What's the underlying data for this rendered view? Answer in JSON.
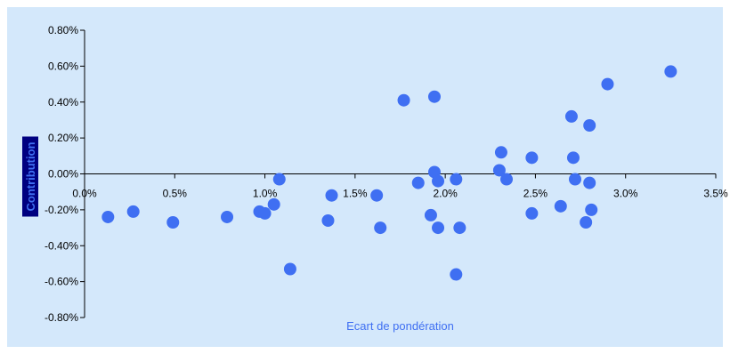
{
  "colors": {
    "plot_background": "#d4e8fb",
    "page_background": "#ffffff",
    "axis": "#000000",
    "marker": "#3f6ff2",
    "xlabel": "#3f6ff2",
    "ylabel_bg": "#000080",
    "ylabel_fg": "#3f6ff2"
  },
  "chart_data": {
    "type": "scatter",
    "title": "",
    "xlabel": "Ecart de pondération",
    "ylabel": "Contribution",
    "xlim": [
      0,
      0.035
    ],
    "ylim": [
      -0.008,
      0.008
    ],
    "grid": false,
    "x_ticks": [
      {
        "value": 0.0,
        "label": "0.0%"
      },
      {
        "value": 0.005,
        "label": "0.5%"
      },
      {
        "value": 0.01,
        "label": "1.0%"
      },
      {
        "value": 0.015,
        "label": "1.5%"
      },
      {
        "value": 0.02,
        "label": "2.0%"
      },
      {
        "value": 0.025,
        "label": "2.5%"
      },
      {
        "value": 0.03,
        "label": "3.0%"
      },
      {
        "value": 0.035,
        "label": "3.5%"
      }
    ],
    "y_ticks": [
      {
        "value": 0.008,
        "label": "0.80%"
      },
      {
        "value": 0.006,
        "label": "0.60%"
      },
      {
        "value": 0.004,
        "label": "0.40%"
      },
      {
        "value": 0.002,
        "label": "0.20%"
      },
      {
        "value": 0.0,
        "label": "0.00%"
      },
      {
        "value": -0.002,
        "label": "-0.20%"
      },
      {
        "value": -0.004,
        "label": "-0.40%"
      },
      {
        "value": -0.006,
        "label": "-0.60%"
      },
      {
        "value": -0.008,
        "label": "-0.80%"
      }
    ],
    "points": [
      {
        "x": 0.0013,
        "y": -0.0024
      },
      {
        "x": 0.0027,
        "y": -0.0021
      },
      {
        "x": 0.0049,
        "y": -0.0027
      },
      {
        "x": 0.0079,
        "y": -0.0024
      },
      {
        "x": 0.0097,
        "y": -0.0021
      },
      {
        "x": 0.01,
        "y": -0.0022
      },
      {
        "x": 0.0105,
        "y": -0.0017
      },
      {
        "x": 0.0108,
        "y": -0.0003
      },
      {
        "x": 0.0114,
        "y": -0.0053
      },
      {
        "x": 0.0135,
        "y": -0.0026
      },
      {
        "x": 0.0137,
        "y": -0.0012
      },
      {
        "x": 0.0162,
        "y": -0.0012
      },
      {
        "x": 0.0164,
        "y": -0.003
      },
      {
        "x": 0.0177,
        "y": 0.0041
      },
      {
        "x": 0.0185,
        "y": -0.0005
      },
      {
        "x": 0.0192,
        "y": -0.0023
      },
      {
        "x": 0.0194,
        "y": 0.0043
      },
      {
        "x": 0.0194,
        "y": 0.0001
      },
      {
        "x": 0.0196,
        "y": -0.0004
      },
      {
        "x": 0.0196,
        "y": -0.003
      },
      {
        "x": 0.0206,
        "y": -0.0003
      },
      {
        "x": 0.0206,
        "y": -0.0056
      },
      {
        "x": 0.0208,
        "y": -0.003
      },
      {
        "x": 0.023,
        "y": 0.0002
      },
      {
        "x": 0.0231,
        "y": 0.0012
      },
      {
        "x": 0.0234,
        "y": -0.0003
      },
      {
        "x": 0.0248,
        "y": 0.0009
      },
      {
        "x": 0.0248,
        "y": -0.0022
      },
      {
        "x": 0.0264,
        "y": -0.0018
      },
      {
        "x": 0.027,
        "y": 0.0032
      },
      {
        "x": 0.0271,
        "y": 0.0009
      },
      {
        "x": 0.0272,
        "y": -0.0003
      },
      {
        "x": 0.0278,
        "y": -0.0027
      },
      {
        "x": 0.028,
        "y": 0.0027
      },
      {
        "x": 0.028,
        "y": -0.0005
      },
      {
        "x": 0.0281,
        "y": -0.002
      },
      {
        "x": 0.029,
        "y": 0.005
      },
      {
        "x": 0.0325,
        "y": 0.0057
      }
    ]
  }
}
